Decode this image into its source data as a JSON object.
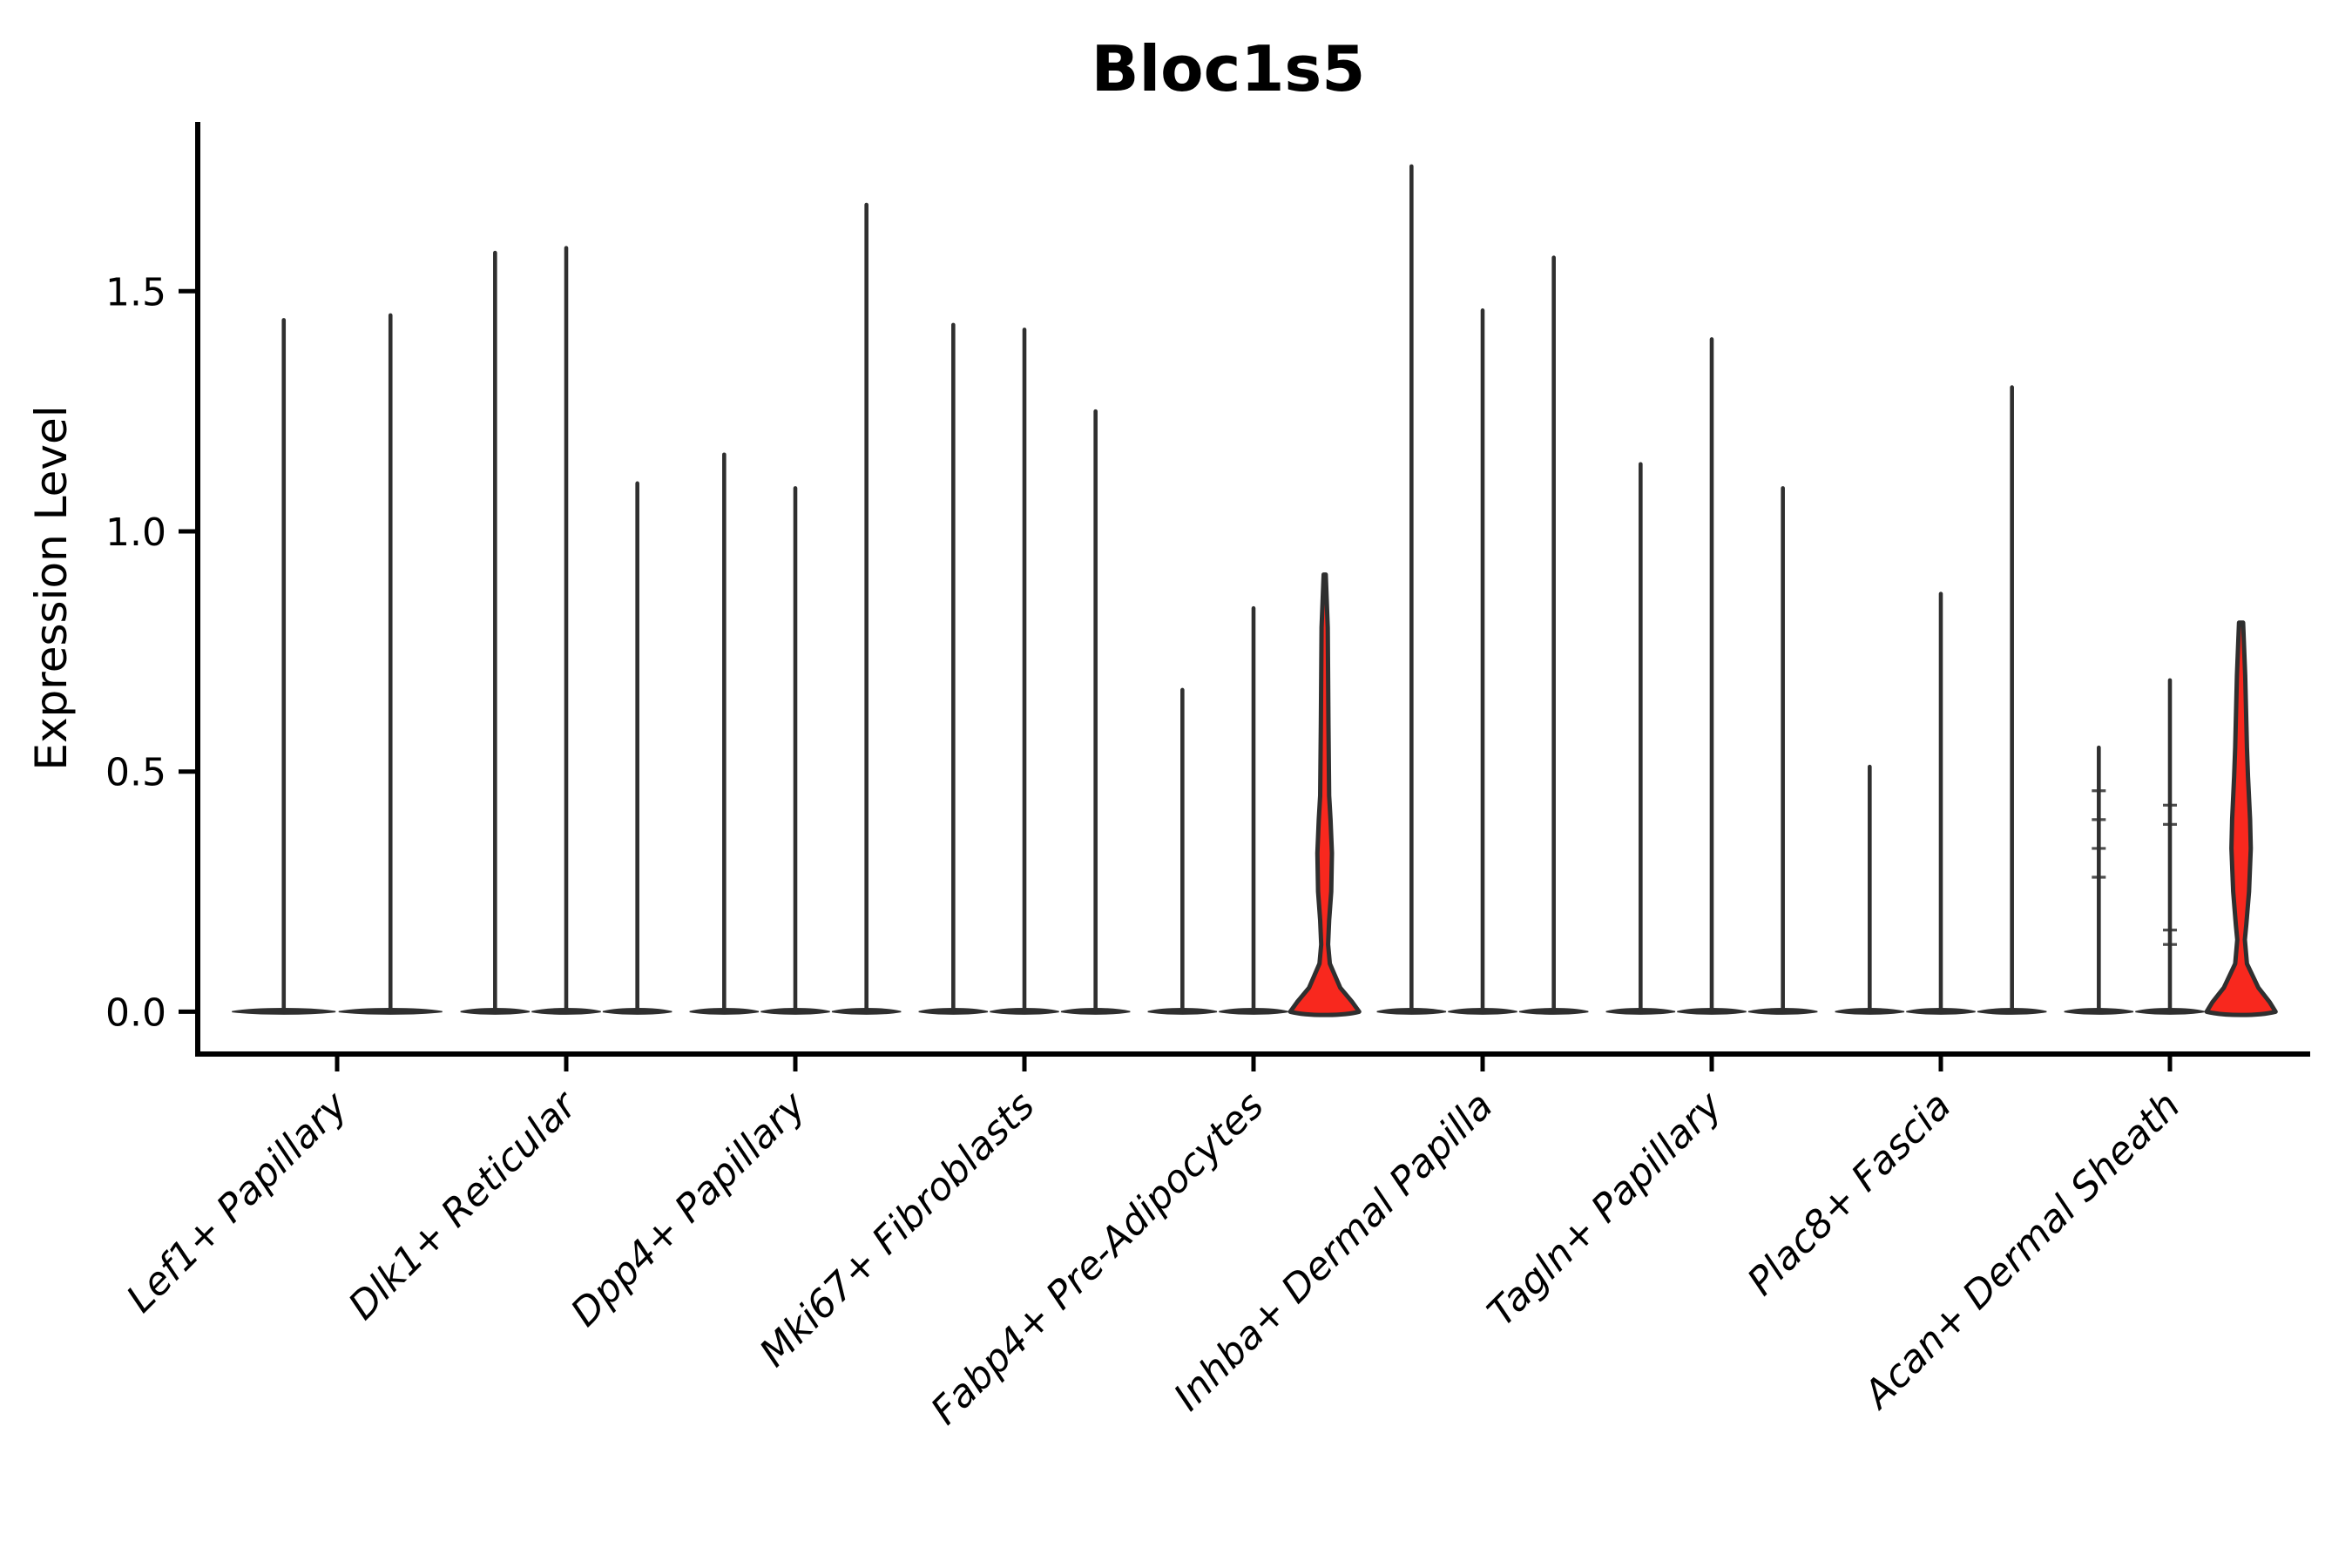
{
  "figure": {
    "title": "Bloc1s5",
    "y_axis_label": "Expression Level"
  },
  "chart_data": {
    "type": "violin",
    "title": "Bloc1s5",
    "xlabel": "",
    "ylabel": "Expression Level",
    "ylim": [
      -0.09,
      1.85
    ],
    "yticks": [
      "0.0",
      "0.5",
      "1.0",
      "1.5"
    ],
    "grid": false,
    "legend": null,
    "x_tick_rotation": 45,
    "colors": {
      "violin_outline": "#2f2f2f",
      "highlight_fill": "#f8281e",
      "axis": "#000000",
      "background": "#ffffff"
    },
    "categories": [
      "Lef1+ Papillary",
      "Dlk1+ Reticular",
      "Dpp4+ Papillary",
      "Mki67+ Fibroblasts",
      "Fabp4+ Pre-Adipocytes",
      "Inhba+ Dermal Papilla",
      "Tagln+ Papillary",
      "Plac8+ Fascia",
      "Acan+ Dermal Sheath"
    ],
    "groups": [
      {
        "label": "Lef1+ Papillary",
        "violins": [
          {
            "max": 1.44
          },
          {
            "max": 1.45
          }
        ]
      },
      {
        "label": "Dlk1+ Reticular",
        "violins": [
          {
            "max": 1.58
          },
          {
            "max": 1.59
          },
          {
            "max": 1.1
          }
        ]
      },
      {
        "label": "Dpp4+ Papillary",
        "violins": [
          {
            "max": 1.16
          },
          {
            "max": 1.09
          },
          {
            "max": 1.68
          }
        ]
      },
      {
        "label": "Mki67+ Fibroblasts",
        "violins": [
          {
            "max": 1.43
          },
          {
            "max": 1.42
          },
          {
            "max": 1.25
          }
        ]
      },
      {
        "label": "Fabp4+ Pre-Adipocytes",
        "violins": [
          {
            "max": 0.67
          },
          {
            "max": 0.84
          },
          {
            "max": 0.91,
            "highlighted": true,
            "profile": [
              [
                0.91,
                0.03
              ],
              [
                0.8,
                0.09
              ],
              [
                0.6,
                0.11
              ],
              [
                0.45,
                0.13
              ],
              [
                0.4,
                0.17
              ],
              [
                0.33,
                0.21
              ],
              [
                0.25,
                0.19
              ],
              [
                0.19,
                0.13
              ],
              [
                0.14,
                0.1
              ],
              [
                0.1,
                0.15
              ],
              [
                0.05,
                0.45
              ],
              [
                0.02,
                0.8
              ],
              [
                0.0,
                1.0
              ]
            ]
          }
        ]
      },
      {
        "label": "Inhba+ Dermal Papilla",
        "violins": [
          {
            "max": 1.76
          },
          {
            "max": 1.46
          },
          {
            "max": 1.57
          }
        ]
      },
      {
        "label": "Tagln+ Papillary",
        "violins": [
          {
            "max": 1.14
          },
          {
            "max": 1.4
          },
          {
            "max": 1.09
          }
        ]
      },
      {
        "label": "Plac8+ Fascia",
        "violins": [
          {
            "max": 0.51
          },
          {
            "max": 0.87
          },
          {
            "max": 1.3
          }
        ]
      },
      {
        "label": "Acan+ Dermal Sheath",
        "violins": [
          {
            "max": 0.55,
            "marks": [
              0.46,
              0.4,
              0.34,
              0.28
            ]
          },
          {
            "max": 0.69,
            "marks": [
              0.43,
              0.39,
              0.17,
              0.14
            ]
          },
          {
            "max": 0.81,
            "highlighted": true,
            "profile": [
              [
                0.81,
                0.06
              ],
              [
                0.7,
                0.12
              ],
              [
                0.55,
                0.17
              ],
              [
                0.49,
                0.2
              ],
              [
                0.4,
                0.26
              ],
              [
                0.34,
                0.28
              ],
              [
                0.25,
                0.23
              ],
              [
                0.18,
                0.15
              ],
              [
                0.15,
                0.11
              ],
              [
                0.1,
                0.17
              ],
              [
                0.05,
                0.5
              ],
              [
                0.02,
                0.83
              ],
              [
                0.0,
                1.0
              ]
            ]
          }
        ]
      }
    ]
  }
}
